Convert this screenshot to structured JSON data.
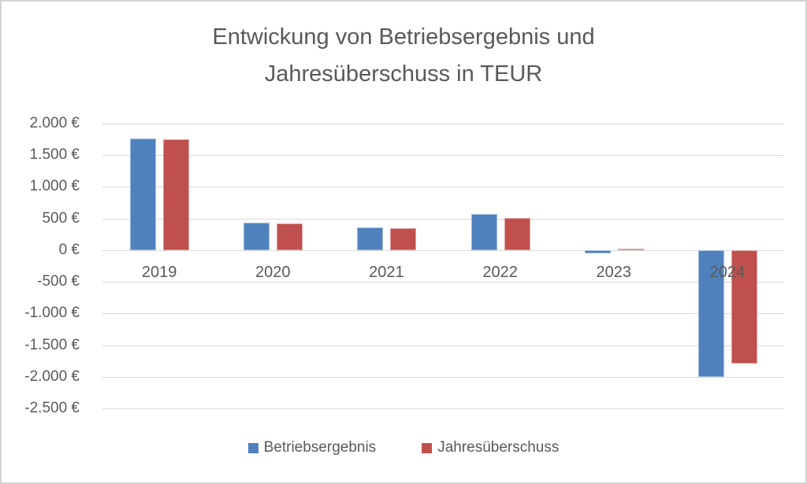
{
  "chart_data": {
    "type": "bar",
    "title": "Entwickung von Betriebsergebnis und Jahresüberschuss in TEUR",
    "categories": [
      "2019",
      "2020",
      "2021",
      "2022",
      "2023",
      "2024"
    ],
    "series": [
      {
        "name": "Betriebsergebnis",
        "color": "#4F81BD",
        "values": [
          1770,
          435,
          360,
          570,
          -50,
          -2000
        ]
      },
      {
        "name": "Jahresüberschuss",
        "color": "#C0504D",
        "values": [
          1750,
          420,
          350,
          510,
          30,
          -1790
        ]
      }
    ],
    "unit": "TEUR",
    "ylim": [
      -2500,
      2000
    ],
    "ytick_values": [
      2000,
      1500,
      1000,
      500,
      0,
      -500,
      -1000,
      -1500,
      -2000,
      -2500
    ],
    "ytick_labels": [
      "2.000 €",
      "1.500 €",
      "1.000 €",
      "500 €",
      "0 €",
      "-500 €",
      "-1.000 €",
      "-1.500 €",
      "-2.000 €",
      "-2.500 €"
    ],
    "grid": true,
    "legend_position": "bottom",
    "colors": {
      "text": "#595959",
      "gridline": "#D9D9D9",
      "frame_border": "#D2D2D2",
      "background": "#FFFFFF"
    }
  }
}
